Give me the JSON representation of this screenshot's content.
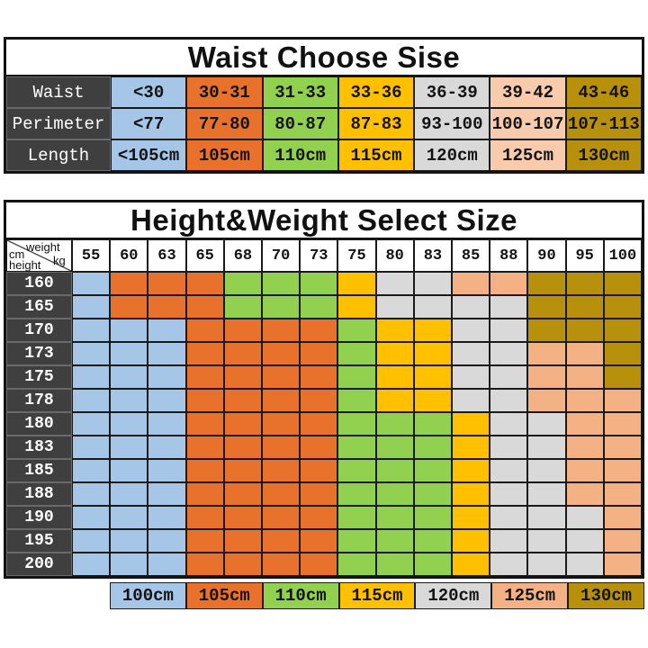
{
  "waist_table": {
    "title": "Waist Choose Sise",
    "rows": [
      {
        "label": "Waist",
        "values": [
          "<30",
          "30-31",
          "31-33",
          "33-36",
          "36-39",
          "39-42",
          "43-46"
        ]
      },
      {
        "label": "Perimeter",
        "values": [
          "<77",
          "77-80",
          "80-87",
          "87-83",
          "93-100",
          "100-107",
          "107-113"
        ]
      },
      {
        "label": "Length",
        "values": [
          "<105cm",
          "105cm",
          "110cm",
          "115cm",
          "120cm",
          "125cm",
          "130cm"
        ]
      }
    ],
    "column_colors": [
      "#A6C6E7",
      "#E8722C",
      "#92D050",
      "#FFC000",
      "#D9D9D9",
      "#F8CBAD",
      "#B8910C"
    ],
    "header_bg": "#3F3F3F"
  },
  "size_table": {
    "title": "Height&Weight Select Size",
    "corner": {
      "weight_label": "weight",
      "weight_unit": "kg",
      "height_unit": "cm",
      "height_label": "height"
    },
    "weight_columns": [
      "55",
      "60",
      "63",
      "65",
      "68",
      "70",
      "73",
      "75",
      "80",
      "83",
      "85",
      "88",
      "90",
      "95",
      "100"
    ],
    "height_rows": [
      "160",
      "165",
      "170",
      "173",
      "175",
      "178",
      "180",
      "183",
      "185",
      "188",
      "190",
      "195",
      "200"
    ],
    "palette": [
      "#A6C6E7",
      "#E8722C",
      "#92D050",
      "#FFC000",
      "#D9D9D9",
      "#F4B183",
      "#B8910C"
    ],
    "palette_sizes": [
      "100cm",
      "105cm",
      "110cm",
      "115cm",
      "120cm",
      "125cm",
      "130cm"
    ],
    "cells": [
      [
        0,
        1,
        1,
        1,
        2,
        2,
        2,
        3,
        4,
        4,
        5,
        5,
        6,
        6,
        6
      ],
      [
        0,
        1,
        1,
        1,
        2,
        2,
        2,
        3,
        4,
        4,
        4,
        4,
        6,
        6,
        6
      ],
      [
        0,
        0,
        0,
        1,
        1,
        1,
        1,
        2,
        3,
        3,
        4,
        4,
        6,
        6,
        6
      ],
      [
        0,
        0,
        0,
        1,
        1,
        1,
        1,
        2,
        3,
        3,
        4,
        4,
        5,
        5,
        6
      ],
      [
        0,
        0,
        0,
        1,
        1,
        1,
        1,
        2,
        3,
        3,
        4,
        4,
        5,
        5,
        6
      ],
      [
        0,
        0,
        0,
        1,
        1,
        1,
        1,
        2,
        3,
        3,
        4,
        4,
        5,
        5,
        5
      ],
      [
        0,
        0,
        0,
        1,
        1,
        1,
        1,
        2,
        2,
        2,
        3,
        4,
        4,
        5,
        5
      ],
      [
        0,
        0,
        0,
        1,
        1,
        1,
        1,
        2,
        2,
        2,
        3,
        4,
        4,
        5,
        5
      ],
      [
        0,
        0,
        0,
        1,
        1,
        1,
        1,
        2,
        2,
        2,
        3,
        4,
        4,
        5,
        5
      ],
      [
        0,
        0,
        0,
        1,
        1,
        1,
        1,
        2,
        2,
        2,
        3,
        4,
        4,
        5,
        5
      ],
      [
        0,
        0,
        0,
        1,
        1,
        1,
        1,
        2,
        2,
        2,
        3,
        4,
        4,
        4,
        5
      ],
      [
        0,
        0,
        0,
        1,
        1,
        1,
        1,
        2,
        2,
        2,
        3,
        4,
        4,
        4,
        5
      ],
      [
        0,
        0,
        0,
        1,
        1,
        1,
        1,
        2,
        2,
        2,
        3,
        4,
        4,
        4,
        5
      ]
    ]
  },
  "legend": {
    "items": [
      {
        "label": "100cm",
        "color": "#A6C6E7"
      },
      {
        "label": "105cm",
        "color": "#E8722C"
      },
      {
        "label": "110cm",
        "color": "#92D050"
      },
      {
        "label": "115cm",
        "color": "#FFC000"
      },
      {
        "label": "120cm",
        "color": "#D9D9D9"
      },
      {
        "label": "125cm",
        "color": "#F4B183"
      },
      {
        "label": "130cm",
        "color": "#B8910C"
      }
    ]
  },
  "chart_data": [
    {
      "type": "table",
      "title": "Waist Choose Sise",
      "row_headers": [
        "Waist",
        "Perimeter",
        "Length"
      ],
      "rows": [
        [
          "<30",
          "30-31",
          "31-33",
          "33-36",
          "36-39",
          "39-42",
          "43-46"
        ],
        [
          "<77",
          "77-80",
          "80-87",
          "87-83",
          "93-100",
          "100-107",
          "107-113"
        ],
        [
          "<105cm",
          "105cm",
          "110cm",
          "115cm",
          "120cm",
          "125cm",
          "130cm"
        ]
      ]
    },
    {
      "type": "heatmap",
      "title": "Height&Weight Select Size",
      "xlabel": "weight kg",
      "ylabel": "height cm",
      "x": [
        55,
        60,
        63,
        65,
        68,
        70,
        73,
        75,
        80,
        83,
        85,
        88,
        90,
        95,
        100
      ],
      "y": [
        160,
        165,
        170,
        173,
        175,
        178,
        180,
        183,
        185,
        188,
        190,
        195,
        200
      ],
      "legend_position": "bottom",
      "legend": [
        "100cm",
        "105cm",
        "110cm",
        "115cm",
        "120cm",
        "125cm",
        "130cm"
      ],
      "values": [
        [
          "100cm",
          "105cm",
          "105cm",
          "105cm",
          "110cm",
          "110cm",
          "110cm",
          "115cm",
          "120cm",
          "120cm",
          "125cm",
          "125cm",
          "130cm",
          "130cm",
          "130cm"
        ],
        [
          "100cm",
          "105cm",
          "105cm",
          "105cm",
          "110cm",
          "110cm",
          "110cm",
          "115cm",
          "120cm",
          "120cm",
          "120cm",
          "120cm",
          "130cm",
          "130cm",
          "130cm"
        ],
        [
          "100cm",
          "100cm",
          "100cm",
          "105cm",
          "105cm",
          "105cm",
          "105cm",
          "110cm",
          "115cm",
          "115cm",
          "120cm",
          "120cm",
          "130cm",
          "130cm",
          "130cm"
        ],
        [
          "100cm",
          "100cm",
          "100cm",
          "105cm",
          "105cm",
          "105cm",
          "105cm",
          "110cm",
          "115cm",
          "115cm",
          "120cm",
          "120cm",
          "125cm",
          "125cm",
          "130cm"
        ],
        [
          "100cm",
          "100cm",
          "100cm",
          "105cm",
          "105cm",
          "105cm",
          "105cm",
          "110cm",
          "115cm",
          "115cm",
          "120cm",
          "120cm",
          "125cm",
          "125cm",
          "130cm"
        ],
        [
          "100cm",
          "100cm",
          "100cm",
          "105cm",
          "105cm",
          "105cm",
          "105cm",
          "110cm",
          "115cm",
          "115cm",
          "120cm",
          "120cm",
          "125cm",
          "125cm",
          "125cm"
        ],
        [
          "100cm",
          "100cm",
          "100cm",
          "105cm",
          "105cm",
          "105cm",
          "105cm",
          "110cm",
          "110cm",
          "110cm",
          "115cm",
          "120cm",
          "120cm",
          "125cm",
          "125cm"
        ],
        [
          "100cm",
          "100cm",
          "100cm",
          "105cm",
          "105cm",
          "105cm",
          "105cm",
          "110cm",
          "110cm",
          "110cm",
          "115cm",
          "120cm",
          "120cm",
          "125cm",
          "125cm"
        ],
        [
          "100cm",
          "100cm",
          "100cm",
          "105cm",
          "105cm",
          "105cm",
          "105cm",
          "110cm",
          "110cm",
          "110cm",
          "115cm",
          "120cm",
          "120cm",
          "125cm",
          "125cm"
        ],
        [
          "100cm",
          "100cm",
          "100cm",
          "105cm",
          "105cm",
          "105cm",
          "105cm",
          "110cm",
          "110cm",
          "110cm",
          "115cm",
          "120cm",
          "120cm",
          "125cm",
          "125cm"
        ],
        [
          "100cm",
          "100cm",
          "100cm",
          "105cm",
          "105cm",
          "105cm",
          "105cm",
          "110cm",
          "110cm",
          "110cm",
          "115cm",
          "120cm",
          "120cm",
          "120cm",
          "125cm"
        ],
        [
          "100cm",
          "100cm",
          "100cm",
          "105cm",
          "105cm",
          "105cm",
          "105cm",
          "110cm",
          "110cm",
          "110cm",
          "115cm",
          "120cm",
          "120cm",
          "120cm",
          "125cm"
        ],
        [
          "100cm",
          "100cm",
          "100cm",
          "105cm",
          "105cm",
          "105cm",
          "105cm",
          "110cm",
          "110cm",
          "110cm",
          "115cm",
          "120cm",
          "120cm",
          "120cm",
          "125cm"
        ]
      ]
    }
  ]
}
